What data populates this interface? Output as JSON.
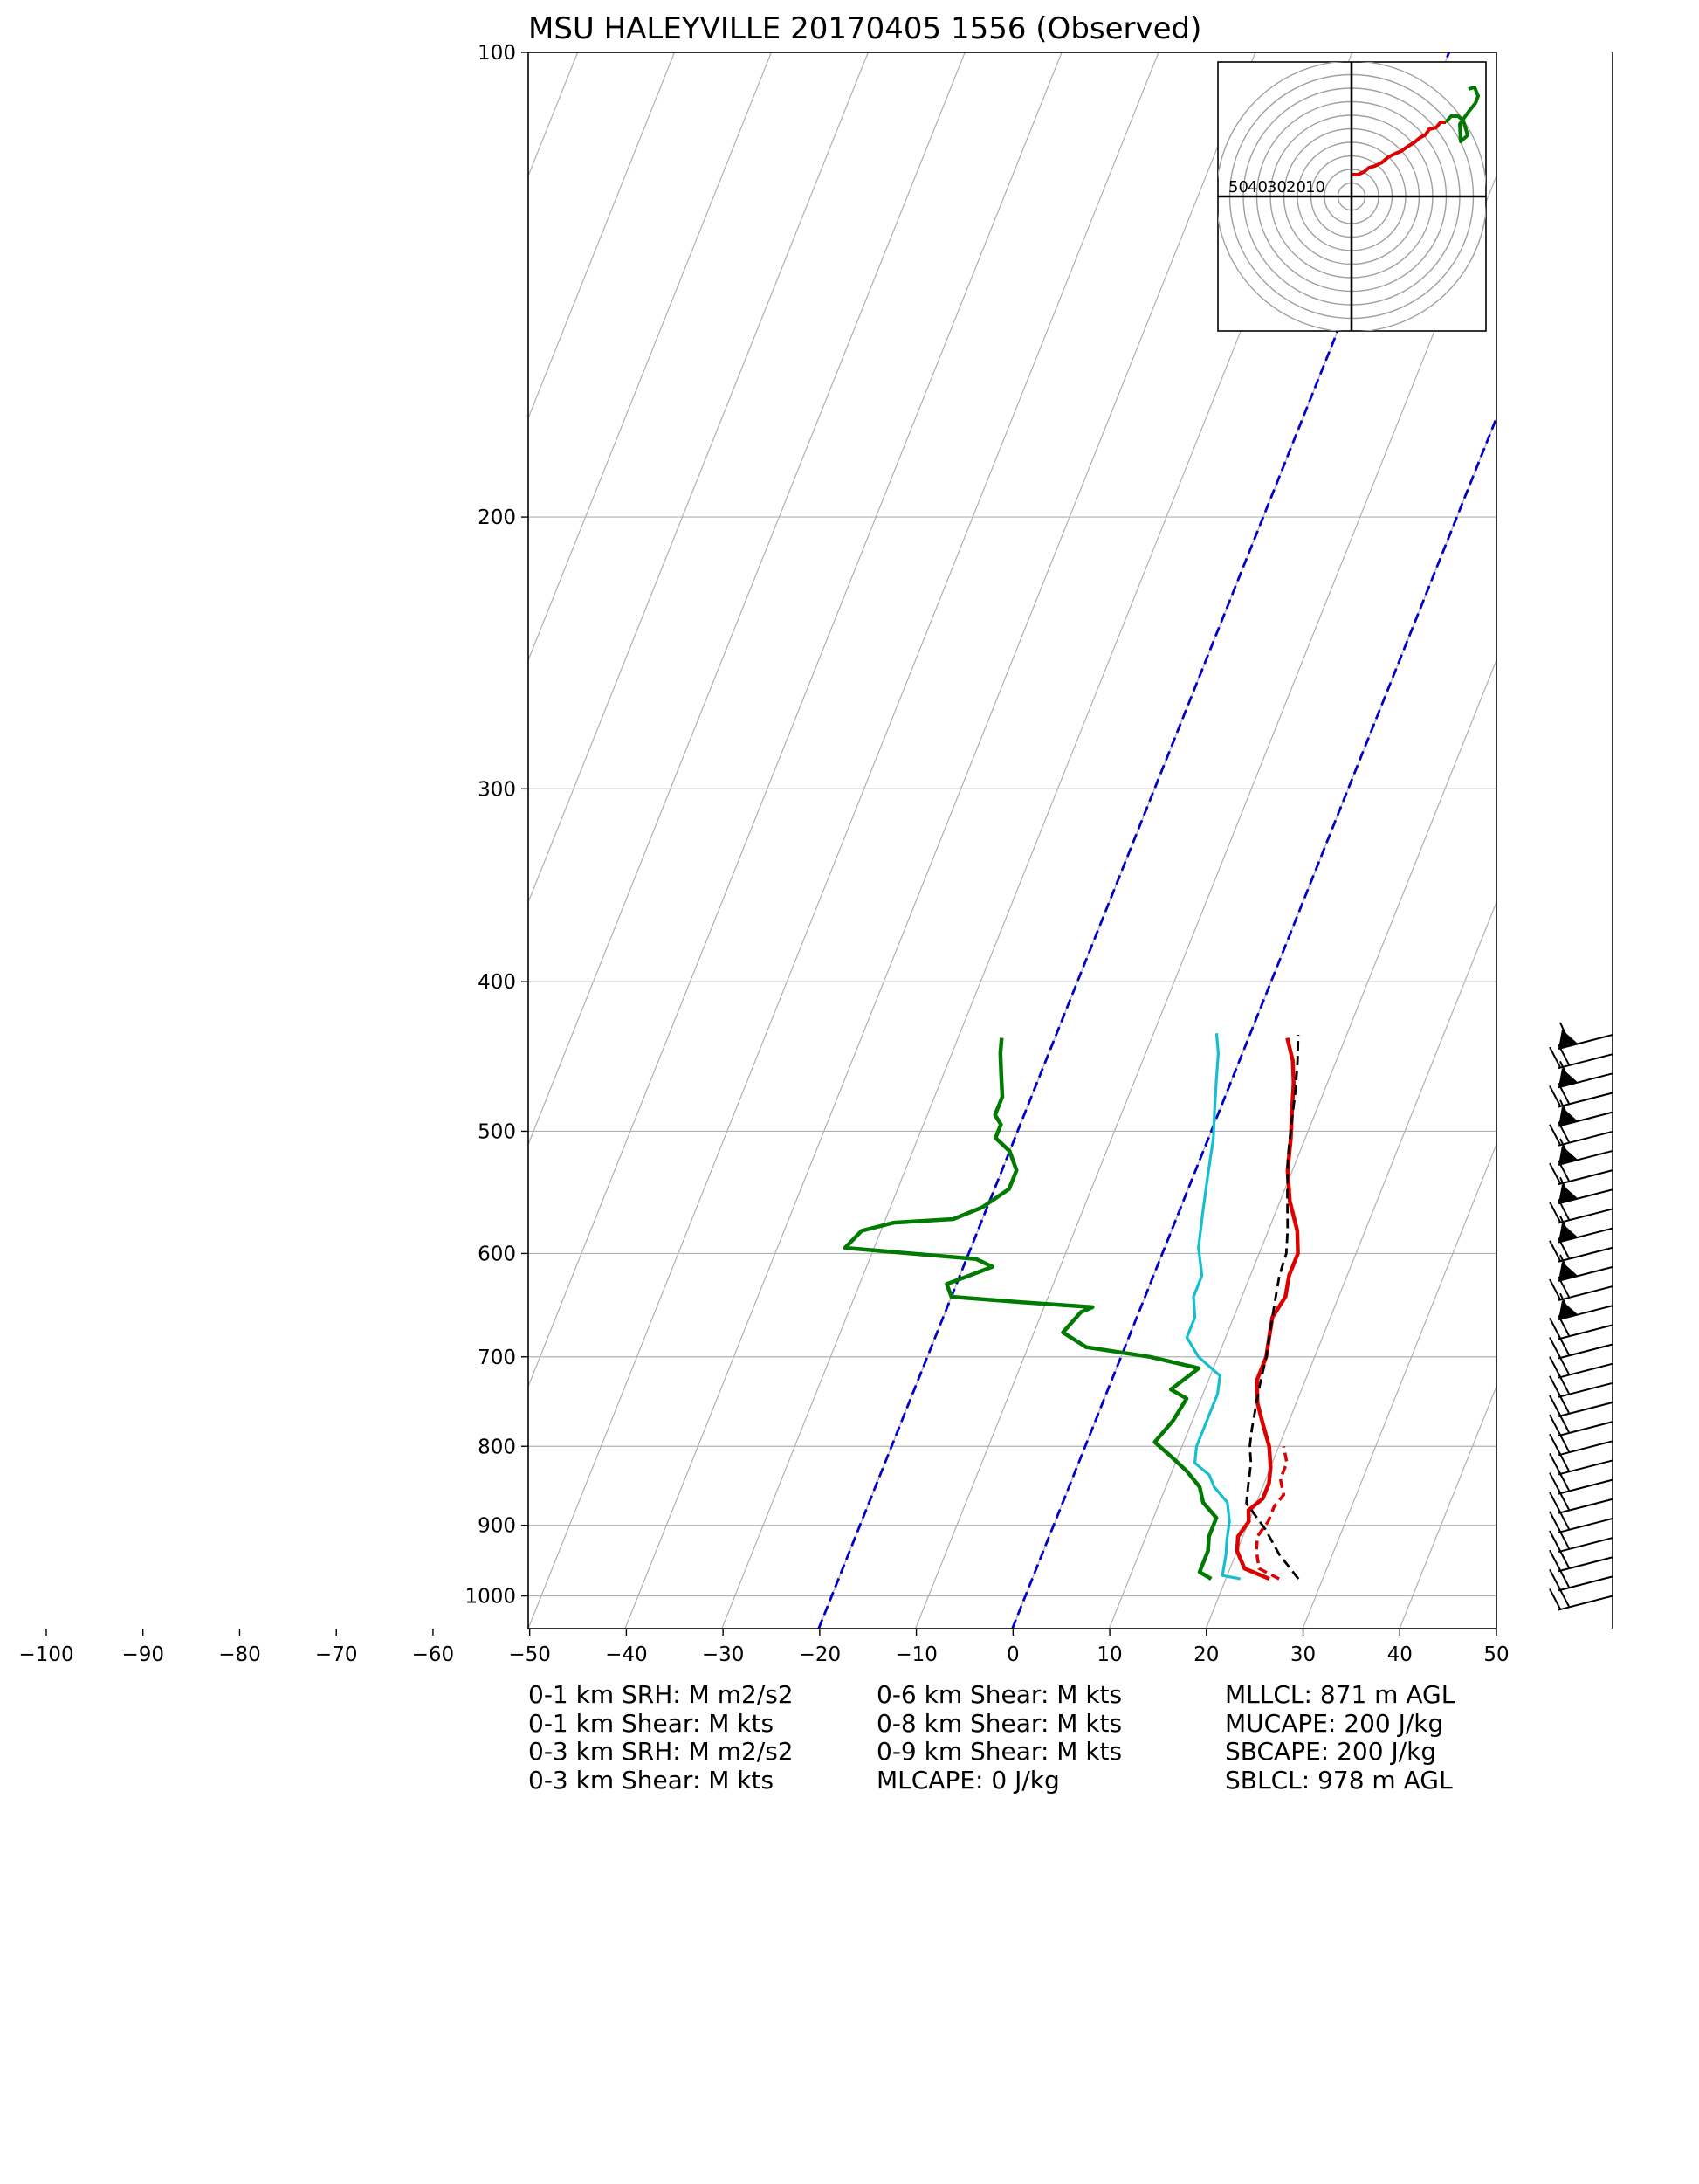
{
  "chart_data": {
    "type": "line",
    "title": "MSU HALEYVILLE 20170405 1556   (Observed)",
    "chart_kind": "skew-T log-P sounding",
    "x_axis": {
      "label": "",
      "range": [
        -100,
        50
      ],
      "ticks": [
        "−100",
        "−90",
        "−80",
        "−70",
        "−60",
        "−50",
        "−40",
        "−30",
        "−20",
        "−10",
        "0",
        "10",
        "20",
        "30",
        "40",
        "50"
      ]
    },
    "y_axis": {
      "label": "",
      "scale": "log",
      "range": [
        1050,
        100
      ],
      "ticks": [
        "100",
        "200",
        "300",
        "400",
        "500",
        "600",
        "700",
        "800",
        "900",
        "1000"
      ]
    },
    "grid": true,
    "colors": {
      "temperature": "#dd0000",
      "dewpoint": "#007a00",
      "wetbulb": "#17becf",
      "parcel": "#000000",
      "isotherm_0_-20": "#0000cc",
      "grid": "#b0b0b0"
    },
    "series": [
      {
        "key": "temperature",
        "points": [
          [
            24.5,
            975
          ],
          [
            21.5,
            960
          ],
          [
            20,
            935
          ],
          [
            19.5,
            915
          ],
          [
            20,
            895
          ],
          [
            19.5,
            880
          ],
          [
            20.5,
            865
          ],
          [
            20.5,
            845
          ],
          [
            20,
            825
          ],
          [
            19,
            800
          ],
          [
            17.5,
            775
          ],
          [
            16,
            750
          ],
          [
            15,
            725
          ],
          [
            15,
            700
          ],
          [
            14.5,
            680
          ],
          [
            14,
            660
          ],
          [
            14.5,
            640
          ],
          [
            14,
            620
          ],
          [
            14,
            600
          ],
          [
            13,
            580
          ],
          [
            11,
            555
          ],
          [
            9.5,
            530
          ],
          [
            8.5,
            505
          ],
          [
            7.5,
            485
          ],
          [
            6.5,
            465
          ],
          [
            5.5,
            450
          ],
          [
            4,
            435
          ]
        ]
      },
      {
        "key": "temperature_virtual",
        "points": [
          [
            25.5,
            975
          ],
          [
            23,
            960
          ],
          [
            22,
            935
          ],
          [
            21.5,
            915
          ],
          [
            22,
            895
          ],
          [
            22,
            875
          ],
          [
            22.5,
            860
          ],
          [
            21.5,
            840
          ],
          [
            21.5,
            820
          ],
          [
            20.5,
            800
          ]
        ]
      },
      {
        "key": "dewpoint",
        "points": [
          [
            18.5,
            975
          ],
          [
            17,
            965
          ],
          [
            17,
            935
          ],
          [
            16.5,
            915
          ],
          [
            16.5,
            890
          ],
          [
            14.5,
            870
          ],
          [
            13.5,
            850
          ],
          [
            11.5,
            830
          ],
          [
            9,
            810
          ],
          [
            7,
            795
          ],
          [
            8,
            770
          ],
          [
            8.5,
            745
          ],
          [
            6.5,
            735
          ],
          [
            8.5,
            712
          ],
          [
            3,
            700
          ],
          [
            -4,
            690
          ],
          [
            -7,
            675
          ],
          [
            -6,
            655
          ],
          [
            -5,
            650
          ],
          [
            -13,
            645
          ],
          [
            -20,
            640
          ],
          [
            -21,
            628
          ],
          [
            -19,
            620
          ],
          [
            -17,
            612
          ],
          [
            -19,
            605
          ],
          [
            -33,
            595
          ],
          [
            -32,
            580
          ],
          [
            -29,
            573
          ],
          [
            -23,
            570
          ],
          [
            -20.5,
            560
          ],
          [
            -18.5,
            545
          ],
          [
            -18.5,
            530
          ],
          [
            -20,
            515
          ],
          [
            -22,
            505
          ],
          [
            -22,
            495
          ],
          [
            -23,
            488
          ],
          [
            -23,
            475
          ],
          [
            -24,
            460
          ],
          [
            -25,
            445
          ],
          [
            -25.5,
            435
          ]
        ]
      },
      {
        "key": "wetbulb",
        "points": [
          [
            21.5,
            975
          ],
          [
            19.5,
            970
          ],
          [
            19,
            940
          ],
          [
            18.5,
            920
          ],
          [
            18,
            895
          ],
          [
            17,
            870
          ],
          [
            15,
            850
          ],
          [
            14,
            835
          ],
          [
            12,
            820
          ],
          [
            11.5,
            800
          ],
          [
            11.5,
            770
          ],
          [
            11.5,
            740
          ],
          [
            11,
            720
          ],
          [
            8,
            700
          ],
          [
            6,
            680
          ],
          [
            6,
            660
          ],
          [
            5,
            640
          ],
          [
            5,
            620
          ],
          [
            3.5,
            595
          ],
          [
            2.5,
            565
          ],
          [
            1.5,
            535
          ],
          [
            0.5,
            505
          ],
          [
            -0.5,
            485
          ],
          [
            -1.5,
            465
          ],
          [
            -2.5,
            445
          ],
          [
            -3.5,
            432
          ]
        ]
      },
      {
        "key": "parcel",
        "points": [
          [
            27.5,
            975
          ],
          [
            24.5,
            940
          ],
          [
            22,
            905
          ],
          [
            19,
            871
          ],
          [
            18.5,
            850
          ],
          [
            17.8,
            820
          ],
          [
            17,
            800
          ],
          [
            16.5,
            780
          ],
          [
            16,
            755
          ],
          [
            15.5,
            730
          ],
          [
            15,
            700
          ],
          [
            14.5,
            680
          ],
          [
            14,
            660
          ],
          [
            13.5,
            640
          ],
          [
            13,
            620
          ],
          [
            12.8,
            600
          ],
          [
            12,
            580
          ],
          [
            10.5,
            550
          ],
          [
            9,
            520
          ],
          [
            8,
            495
          ],
          [
            7,
            470
          ],
          [
            6,
            450
          ],
          [
            5,
            433
          ]
        ]
      }
    ],
    "isotherms_highlighted": [
      0,
      -20
    ],
    "hodograph": {
      "ring_labels": [
        "50",
        "40",
        "30",
        "20",
        "10"
      ],
      "ring_spacing_kts": 10,
      "rings": 10
    },
    "wind_barbs": {
      "present": true,
      "levels_hpa": [
        1000,
        433
      ]
    }
  },
  "stats": {
    "col1": [
      "0-1 km SRH: M m2/s2",
      "0-1 km Shear: M kts",
      "0-3 km SRH: M m2/s2",
      "0-3 km Shear: M kts"
    ],
    "col2": [
      "0-6 km Shear: M kts",
      "0-8 km Shear: M kts",
      "0-9 km Shear: M kts",
      "MLCAPE: 0 J/kg"
    ],
    "col3": [
      "MLLCL: 871 m AGL",
      "MUCAPE: 200 J/kg",
      "SBCAPE: 200 J/kg",
      "SBLCL: 978 m AGL"
    ]
  }
}
